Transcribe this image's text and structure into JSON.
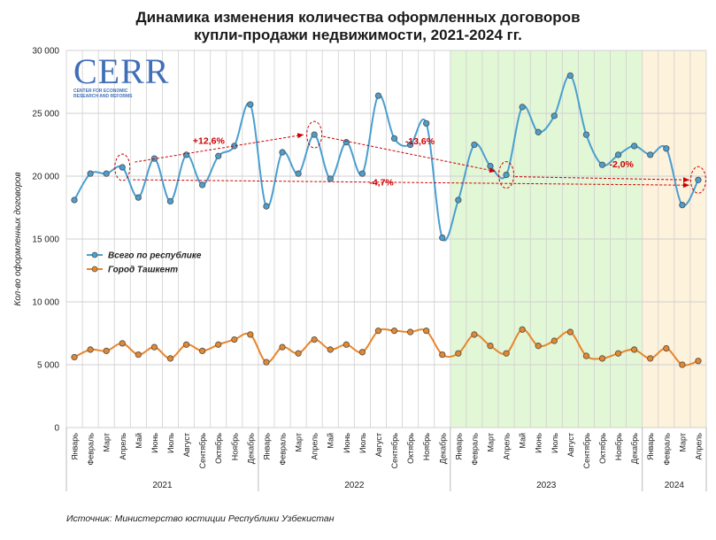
{
  "title_line1": "Динамика изменения количества оформленных договоров",
  "title_line2": "купли-продажи недвижимости, 2021-2024 гг.",
  "source": "Источник: Министерство юстиции Республики Узбекистан",
  "logo": {
    "main": "CERR",
    "sub1": "CENTER FOR ECONOMIC",
    "sub2": "RESEARCH AND REFORMS"
  },
  "colors": {
    "total": "#4a9fd0",
    "tashkent": "#e8862a",
    "grid": "#d0d0d0",
    "zone2023": "#e2f7d6",
    "zone2024": "#fdf2dc",
    "annotation": "#cc0000"
  },
  "chart_data": {
    "type": "line",
    "ylabel": "Кол-во оформленных договоров",
    "ylim": [
      0,
      30000
    ],
    "yticks": [
      "0",
      "5 000",
      "10 000",
      "15 000",
      "20 000",
      "25 000",
      "30 000"
    ],
    "grid": true,
    "legend_position": "left-middle",
    "months": [
      "Январь",
      "Февраль",
      "Март",
      "Апрель",
      "Май",
      "Июнь",
      "Июль",
      "Август",
      "Сентябрь",
      "Октябрь",
      "Ноябрь",
      "Декабрь",
      "Январь",
      "Февраль",
      "Март",
      "Апрель",
      "Май",
      "Июнь",
      "Июль",
      "Август",
      "Сентябрь",
      "Октябрь",
      "Ноябрь",
      "Декабрь",
      "Январь",
      "Февраль",
      "Март",
      "Апрель",
      "Май",
      "Июнь",
      "Июль",
      "Август",
      "Сентябрь",
      "Октябрь",
      "Ноябрь",
      "Декабрь",
      "Январь",
      "Февраль",
      "Март",
      "Апрель"
    ],
    "years": [
      {
        "label": "2021",
        "count": 12
      },
      {
        "label": "2022",
        "count": 12
      },
      {
        "label": "2023",
        "count": 12
      },
      {
        "label": "2024",
        "count": 4
      }
    ],
    "series": [
      {
        "name": "Всего по республике",
        "values": [
          18100,
          20200,
          20200,
          20700,
          18300,
          21400,
          18000,
          21700,
          19300,
          21600,
          22400,
          25700,
          17600,
          21900,
          20200,
          23300,
          19800,
          22700,
          20200,
          26400,
          23000,
          22500,
          24200,
          15100,
          18100,
          22500,
          20800,
          20100,
          25500,
          23500,
          24800,
          28000,
          23300,
          20900,
          21700,
          22400,
          21700,
          22200,
          17700,
          19700
        ]
      },
      {
        "name": "Город Ташкент",
        "values": [
          5600,
          6200,
          6100,
          6700,
          5800,
          6400,
          5500,
          6600,
          6100,
          6600,
          7000,
          7400,
          5200,
          6400,
          5900,
          7000,
          6200,
          6600,
          6000,
          7700,
          7700,
          7600,
          7700,
          5800,
          5900,
          7400,
          6500,
          5900,
          7800,
          6500,
          6900,
          7600,
          5700,
          5500,
          5900,
          6200,
          5500,
          6300,
          5000,
          5300
        ]
      }
    ],
    "annotations": [
      {
        "label": "+12,6%",
        "from": 3,
        "to": 15
      },
      {
        "label": "-13,6%",
        "from": 15,
        "to": 27
      },
      {
        "label": "-2,0%",
        "from": 27,
        "to": 39
      },
      {
        "label": "-4,7%",
        "from": 3,
        "to": 39
      }
    ],
    "highlight_ranges": [
      {
        "label": "2023",
        "start": 24,
        "end": 35
      },
      {
        "label": "2024",
        "start": 36,
        "end": 39
      }
    ]
  }
}
